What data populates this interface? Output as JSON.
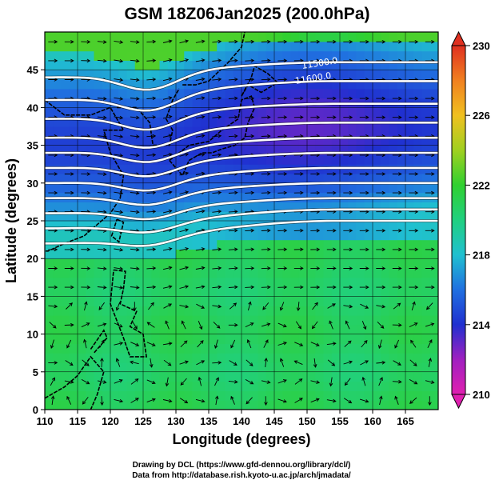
{
  "chart_data": {
    "type": "heatmap",
    "title": "GSM 18Z06Jan2025 (200.0hPa)",
    "xlabel": "Longitude (degrees)",
    "ylabel": "Latitude  (degrees)",
    "xlim": [
      110,
      170
    ],
    "ylim": [
      0,
      50
    ],
    "x_ticks": [
      "110",
      "115",
      "120",
      "125",
      "130",
      "135",
      "140",
      "145",
      "150",
      "155",
      "160",
      "165"
    ],
    "y_ticks": [
      "0",
      "5",
      "10",
      "15",
      "20",
      "25",
      "30",
      "35",
      "40",
      "45"
    ],
    "grid": true,
    "colorbar": {
      "range": [
        210,
        230
      ],
      "tick_labels": [
        "210",
        "214",
        "218",
        "222",
        "226",
        "230"
      ],
      "colors": [
        "#e020b0",
        "#a020c0",
        "#2030d0",
        "#2070e0",
        "#20c0d0",
        "#20d080",
        "#30d030",
        "#a0d020",
        "#f0c020",
        "#f08020",
        "#e03020"
      ]
    },
    "contour_labels": [
      {
        "text": "11500.0",
        "lon": 152,
        "lat": 45.5
      },
      {
        "text": "11600.0",
        "lon": 151,
        "lat": 43.5
      }
    ],
    "contours_lat_at_lon110": [
      44,
      41,
      38.5,
      36,
      34,
      32,
      30,
      28,
      26,
      24,
      22
    ],
    "contours_lat_at_lon155": [
      46,
      43.5,
      40.5,
      38,
      36,
      34,
      32,
      30,
      28,
      26.5,
      25
    ]
  },
  "footer": {
    "line1": "Drawing by DCL (https://www.gfd-dennou.org/library/dcl/)",
    "line2": "Data from http://database.rish.kyoto-u.ac.jp/arch/jmadata/"
  }
}
